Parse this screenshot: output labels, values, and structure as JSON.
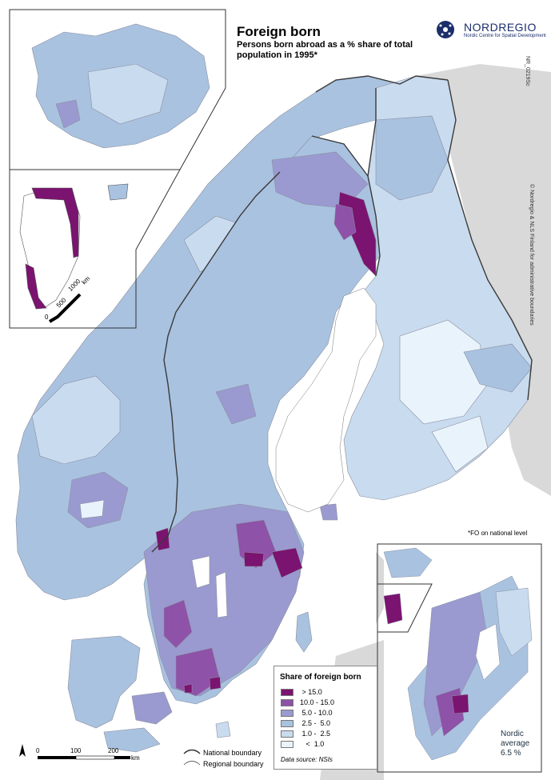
{
  "title": "Foreign born",
  "subtitle": "Persons born abroad as a % share of total population in 1995*",
  "logo": {
    "name": "NORDREGIO",
    "tagline": "Nordic Centre for Spatial Development"
  },
  "map_id": "NR_0219Sc",
  "credit": "© Nordregio & NLS Finland for administrative boundaries",
  "footnote": "*FO on national level",
  "legend": {
    "title": "Share of foreign born",
    "classes": [
      {
        "label": " > 15.0",
        "color": "#7b1370"
      },
      {
        "label": "10.0 - 15.0",
        "color": "#8e52a8"
      },
      {
        "label": " 5.0 - 10.0",
        "color": "#9a9ad0"
      },
      {
        "label": " 2.5 -  5.0",
        "color": "#a9c2e0"
      },
      {
        "label": " 1.0 -  2.5",
        "color": "#c9dbee"
      },
      {
        "label": "   <  1.0",
        "color": "#e9f3fb"
      }
    ],
    "data_source": "Data source: NSIs"
  },
  "boundaries": {
    "national": "National boundary",
    "regional": "Regional boundary"
  },
  "scalebar_main": {
    "ticks": [
      "0",
      "100",
      "200"
    ],
    "unit": "km"
  },
  "scalebar_greenland": {
    "ticks": [
      "0",
      "500",
      "1000"
    ],
    "unit": "km"
  },
  "nordic_average": {
    "line1": "Nordic",
    "line2": "average",
    "value": "6.5 %"
  },
  "colors": {
    "sea": "#ffffff",
    "non_nordic_land": "#d9d9d9",
    "border": "#3a3a3a"
  }
}
